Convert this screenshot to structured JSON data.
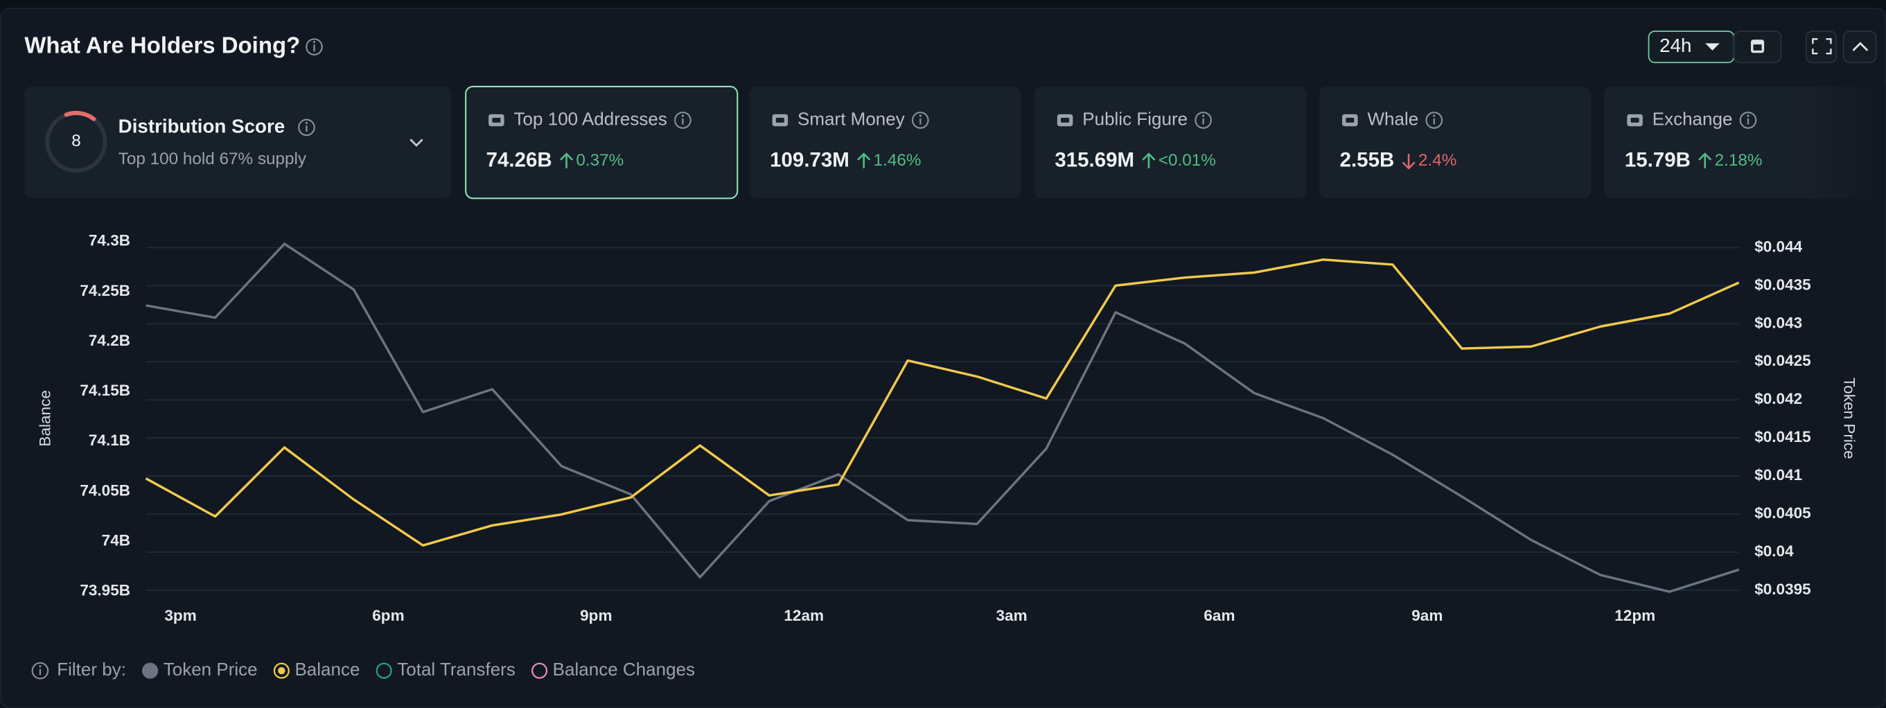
{
  "header": {
    "title": "What Are Holders Doing?",
    "range": "24h"
  },
  "score": {
    "value": 8,
    "label": "Distribution Score",
    "subtitle": "Top 100 hold 67% supply"
  },
  "cards": [
    {
      "label": "Top 100 Addresses",
      "value": "74.26B",
      "change": "0.37%",
      "direction": "up",
      "selected": true
    },
    {
      "label": "Smart Money",
      "value": "109.73M",
      "change": "1.46%",
      "direction": "up"
    },
    {
      "label": "Public Figure",
      "value": "315.69M",
      "change": "<0.01%",
      "direction": "up"
    },
    {
      "label": "Whale",
      "value": "2.55B",
      "change": "2.4%",
      "direction": "down"
    },
    {
      "label": "Exchange",
      "value": "15.79B",
      "change": "2.18%",
      "direction": "up"
    }
  ],
  "chart_data": {
    "type": "line",
    "ylabel": "Balance",
    "y2label": "Token Price",
    "grid": true,
    "categories": [
      null,
      null,
      null,
      null,
      null,
      null,
      null,
      null,
      null,
      null,
      null,
      null,
      null,
      null,
      null,
      null,
      null,
      null,
      null,
      null,
      null,
      null,
      null,
      null
    ],
    "xticks": [
      "3pm",
      "6pm",
      "9pm",
      "12am",
      "3am",
      "6am",
      "9am",
      "12pm"
    ],
    "ylim": [
      73.95,
      74.3
    ],
    "yticks": [
      {
        "value": 74.3,
        "label": "74.3B"
      },
      {
        "value": 74.25,
        "label": "74.25B"
      },
      {
        "value": 74.2,
        "label": "74.2B"
      },
      {
        "value": 74.15,
        "label": "74.15B"
      },
      {
        "value": 74.1,
        "label": "74.1B"
      },
      {
        "value": 74.05,
        "label": "74.05B"
      },
      {
        "value": 74,
        "label": "74B"
      },
      {
        "value": 73.95,
        "label": "73.95B"
      }
    ],
    "y2lim": [
      0.0395,
      0.044
    ],
    "y2ticks": [
      {
        "value": 0.044,
        "label": "$0.044"
      },
      {
        "value": 0.0435,
        "label": "$0.0435"
      },
      {
        "value": 0.043,
        "label": "$0.043"
      },
      {
        "value": 0.0425,
        "label": "$0.0425"
      },
      {
        "value": 0.042,
        "label": "$0.042"
      },
      {
        "value": 0.0415,
        "label": "$0.0415"
      },
      {
        "value": 0.041,
        "label": "$0.041"
      },
      {
        "value": 0.0405,
        "label": "$0.0405"
      },
      {
        "value": 0.04,
        "label": "$0.04"
      },
      {
        "value": 0.0395,
        "label": "$0.0395"
      }
    ],
    "series": [
      {
        "name": "Token Price",
        "color": "#6b7480",
        "axis": "y2",
        "values": [
          0.04324,
          0.04308,
          0.04405,
          0.04345,
          0.04184,
          0.04214,
          0.04113,
          0.04076,
          0.03967,
          0.04067,
          0.04102,
          0.04042,
          0.04037,
          0.04136,
          0.04315,
          0.04274,
          0.04209,
          0.04176,
          0.04128,
          0.04073,
          0.04016,
          0.0397,
          0.03948,
          0.03977
        ]
      },
      {
        "name": "Balance",
        "color": "#f2c94c",
        "values": [
          74.063,
          74.025,
          74.094,
          74.042,
          73.996,
          74.016,
          74.027,
          74.044,
          74.096,
          74.046,
          74.057,
          74.181,
          74.165,
          74.143,
          74.256,
          74.264,
          74.269,
          74.282,
          74.277,
          74.193,
          74.195,
          74.215,
          74.228,
          74.259
        ]
      }
    ]
  },
  "filters": {
    "label": "Filter by:",
    "extra": [
      {
        "name": "Total Transfers",
        "color": "#2a9d8f"
      },
      {
        "name": "Balance Changes",
        "color": "#e88fb4"
      }
    ]
  }
}
